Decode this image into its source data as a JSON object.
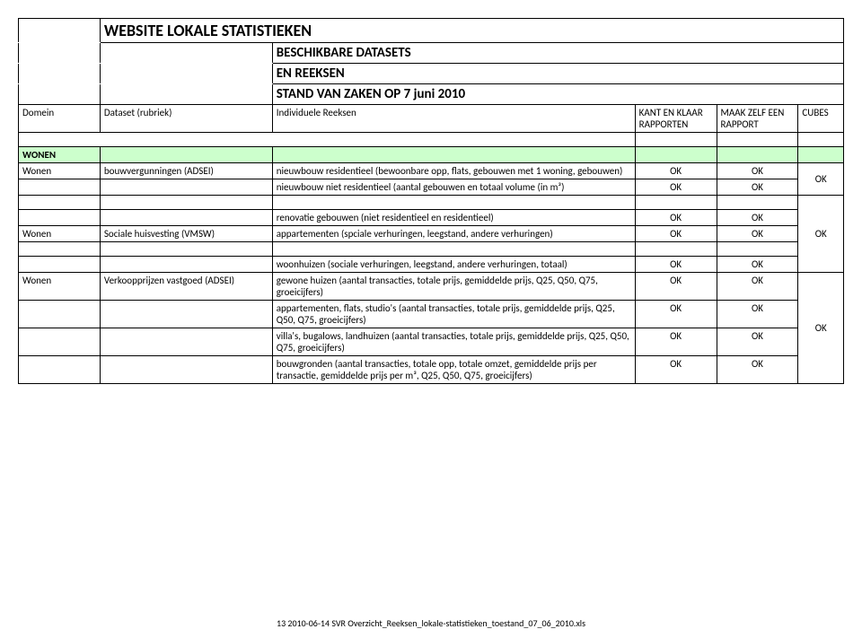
{
  "colors": {
    "section_bg": "#ccffcc",
    "border": "#000000",
    "page_bg": "#ffffff",
    "text": "#000000"
  },
  "header": {
    "title": "WEBSITE LOKALE STATISTIEKEN",
    "subtitle1": "BESCHIKBARE DATASETS",
    "subtitle2": "EN REEKSEN",
    "date_line": "STAND VAN ZAKEN OP  7 juni 2010"
  },
  "cols": {
    "domein": "Domein",
    "dataset": "Dataset (rubriek)",
    "reeksen": "Individuele Reeksen",
    "klaar": "KANT EN KLAAR RAPPORTEN",
    "maak": "MAAK ZELF EEN RAPPORT",
    "cubes": "CUBES"
  },
  "section": "WONEN",
  "rows": [
    {
      "domein": "Wonen",
      "dataset": "bouwvergunningen (ADSEI)",
      "reeks": "nieuwbouw residentieel (bewoonbare opp, flats, gebouwen met 1 woning, gebouwen)",
      "klaar": "OK",
      "maak": "OK",
      "cube": ""
    },
    {
      "domein": "",
      "dataset": "",
      "reeks": "nieuwbouw niet residentieel (aantal gebouwen en totaal volume (in m³)",
      "klaar": "OK",
      "maak": "OK",
      "cube": "OK"
    },
    {
      "domein": "",
      "dataset": "",
      "reeks": "",
      "klaar": "",
      "maak": "",
      "cube": ""
    },
    {
      "domein": "",
      "dataset": "",
      "reeks": "renovatie gebouwen (niet residentieel en residentieel)",
      "klaar": "OK",
      "maak": "OK",
      "cube": ""
    },
    {
      "domein": "Wonen",
      "dataset": "Sociale huisvesting (VMSW)",
      "reeks": "appartementen (spciale verhuringen, leegstand, andere verhuringen)",
      "klaar": "OK",
      "maak": "OK",
      "cube": ""
    },
    {
      "domein": "",
      "dataset": "",
      "reeks": "",
      "klaar": "",
      "maak": "",
      "cube": ""
    },
    {
      "domein": "",
      "dataset": "",
      "reeks": "woonhuizen (sociale verhuringen, leegstand, andere verhuringen, totaal)",
      "klaar": "OK",
      "maak": "OK",
      "cube": "OK"
    },
    {
      "domein": "Wonen",
      "dataset": "Verkoopprijzen vastgoed (ADSEI)",
      "reeks": "gewone huizen (aantal transacties, totale prijs, gemiddelde prijs, Q25, Q50, Q75, groeicijfers)",
      "klaar": "OK",
      "maak": "OK",
      "cube": ""
    },
    {
      "domein": "",
      "dataset": "",
      "reeks": "appartementen, flats, studio's (aantal transacties, totale prijs, gemiddelde prijs, Q25, Q50, Q75, groeicijfers)",
      "klaar": "OK",
      "maak": "OK",
      "cube": ""
    },
    {
      "domein": "",
      "dataset": "",
      "reeks": "villa's, bugalows, landhuizen (aantal transacties, totale prijs, gemiddelde prijs, Q25, Q50, Q75, groeicijfers)",
      "klaar": "OK",
      "maak": "OK",
      "cube": "OK"
    },
    {
      "domein": "",
      "dataset": "",
      "reeks": "bouwgronden (aantal transacties, totale opp, totale omzet, gemiddelde prijs per transactie, gemiddelde prijs per m³, Q25, Q50, Q75, groeicijfers)",
      "klaar": "OK",
      "maak": "OK",
      "cube": ""
    }
  ],
  "cube_spans": [
    {
      "start": 0,
      "len": 2
    },
    {
      "start": 2,
      "len": 5
    },
    {
      "start": 7,
      "len": 4
    }
  ],
  "footer": "13 2010-06-14 SVR Overzicht_Reeksen_lokale-statistieken_toestand_07_06_2010.xls"
}
